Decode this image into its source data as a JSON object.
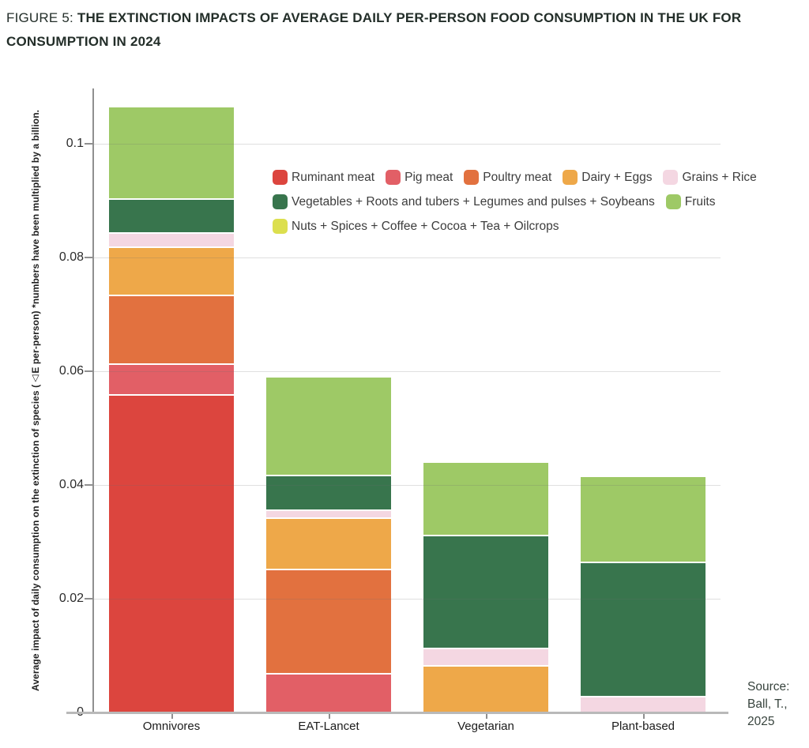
{
  "figure": {
    "label": "FIGURE 5:",
    "title_line1": "THE EXTINCTION IMPACTS OF AVERAGE DAILY PER-PERSON FOOD CONSUMPTION IN THE UK FOR",
    "title_line2": "CONSUMPTION IN 2024"
  },
  "source": {
    "lines": [
      "Source:",
      "Ball, T.,",
      "2025"
    ]
  },
  "colors": {
    "title_text": "#232E29",
    "axis_line": "#8F8F8F",
    "baseline": "#B9B9B9",
    "gridline": "#DCDCDC",
    "legend_text": "#3D3D3D"
  },
  "chart_data": {
    "type": "bar",
    "stacked": true,
    "title": "",
    "xlabel": "",
    "ylabel": "Average impact of daily consumption on the extinction of species (△E per-person) *numbers have been multiplied by a billion.",
    "categories": [
      "Omnivores",
      "EAT-Lancet",
      "Vegetarian",
      "Plant-based"
    ],
    "ytick_labels": [
      "0",
      "0.02",
      "0.04",
      "0.06",
      "0.08",
      "0.1"
    ],
    "ytick_values": [
      0,
      0.02,
      0.04,
      0.06,
      0.08,
      0.1
    ],
    "ylim": [
      0,
      0.109
    ],
    "grid": true,
    "legend_position": "inside-top-center",
    "series": [
      {
        "name": "Ruminant meat",
        "color": "#DC453E",
        "values": [
          0.0558,
          0,
          0,
          0
        ]
      },
      {
        "name": "Pig meat",
        "color": "#E25F66",
        "values": [
          0.0054,
          0.0068,
          0,
          0
        ]
      },
      {
        "name": "Poultry meat",
        "color": "#E2713F",
        "values": [
          0.0121,
          0.0183,
          0,
          0
        ]
      },
      {
        "name": "Dairy + Eggs",
        "color": "#EEA849",
        "values": [
          0.0085,
          0.009,
          0.0082,
          0
        ]
      },
      {
        "name": "Grains + Rice",
        "color": "#F4D7E2",
        "values": [
          0.0025,
          0.0014,
          0.003,
          0.0028
        ]
      },
      {
        "name": "Vegetables + Roots and tubers + Legumes and pulses + Soybeans",
        "color": "#38754D",
        "values": [
          0.006,
          0.0062,
          0.0199,
          0.0236
        ]
      },
      {
        "name": "Fruits",
        "color": "#9EC966",
        "values": [
          0.0162,
          0.0173,
          0.0129,
          0.0151
        ]
      },
      {
        "name": "Nuts + Spices + Coffee + Cocoa + Tea + Oilcrops",
        "color": "#DCDF4E",
        "values": [
          0,
          0,
          0,
          0
        ]
      }
    ],
    "totals": [
      0.1065,
      0.059,
      0.044,
      0.0415
    ],
    "legend_rows": [
      [
        "Ruminant meat",
        "Pig meat",
        "Poultry meat",
        "Dairy + Eggs",
        "Grains + Rice"
      ],
      [
        "Vegetables + Roots and tubers + Legumes and pulses + Soybeans",
        "Fruits"
      ],
      [
        "Nuts + Spices + Coffee + Cocoa + Tea + Oilcrops"
      ]
    ]
  }
}
